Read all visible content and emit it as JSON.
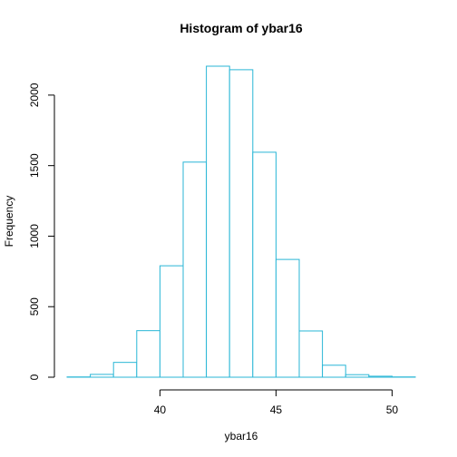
{
  "chart_data": {
    "type": "bar",
    "title": "Histogram of ybar16",
    "xlabel": "ybar16",
    "ylabel": "Frequency",
    "bar_color": "#29b6d6",
    "bins": [
      {
        "start": 36,
        "end": 37,
        "count": 2
      },
      {
        "start": 37,
        "end": 38,
        "count": 20
      },
      {
        "start": 38,
        "end": 39,
        "count": 105
      },
      {
        "start": 39,
        "end": 40,
        "count": 330
      },
      {
        "start": 40,
        "end": 41,
        "count": 790
      },
      {
        "start": 41,
        "end": 42,
        "count": 1525
      },
      {
        "start": 42,
        "end": 43,
        "count": 2205
      },
      {
        "start": 43,
        "end": 44,
        "count": 2180
      },
      {
        "start": 44,
        "end": 45,
        "count": 1595
      },
      {
        "start": 45,
        "end": 46,
        "count": 835
      },
      {
        "start": 46,
        "end": 47,
        "count": 328
      },
      {
        "start": 47,
        "end": 48,
        "count": 85
      },
      {
        "start": 48,
        "end": 49,
        "count": 18
      },
      {
        "start": 49,
        "end": 50,
        "count": 7
      },
      {
        "start": 50,
        "end": 51,
        "count": 2
      }
    ],
    "xticks": [
      40,
      45,
      50
    ],
    "yticks": [
      0,
      500,
      1000,
      1500,
      2000
    ],
    "xlim": [
      36,
      51
    ],
    "ylim": [
      0,
      2205
    ],
    "grid": false,
    "legend": "none"
  }
}
